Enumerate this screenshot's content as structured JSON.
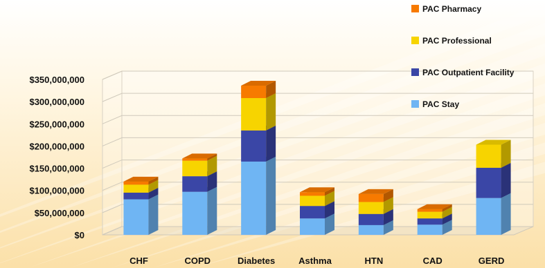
{
  "chart_data": {
    "type": "bar",
    "stacked": true,
    "three_d": true,
    "categories": [
      "CHF",
      "COPD",
      "Diabetes",
      "Asthma",
      "HTN",
      "CAD",
      "GERD"
    ],
    "series": [
      {
        "name": "PAC Stay",
        "color": "#6fb5f3",
        "values": [
          80000000,
          97000000,
          165000000,
          37000000,
          22000000,
          23000000,
          83000000
        ]
      },
      {
        "name": "PAC Outpatient Facility",
        "color": "#3a46a6",
        "values": [
          15000000,
          35000000,
          70000000,
          28000000,
          25000000,
          14000000,
          68000000
        ]
      },
      {
        "name": "PAC Professional",
        "color": "#f7d400",
        "values": [
          18000000,
          35000000,
          73000000,
          23000000,
          27000000,
          15000000,
          52000000
        ]
      },
      {
        "name": "PAC Pharmacy",
        "color": "#f77a00",
        "values": [
          7000000,
          5000000,
          28000000,
          8000000,
          18000000,
          6000000,
          0
        ]
      }
    ],
    "yticks": [
      "$0",
      "$50,000,000",
      "$100,000,000",
      "$150,000,000",
      "$200,000,000",
      "$250,000,000",
      "$300,000,000",
      "$350,000,000"
    ],
    "ylim": [
      0,
      350000000
    ],
    "grid": true,
    "legend_position": "top-right",
    "legend_order": [
      "PAC Pharmacy",
      "PAC Professional",
      "PAC Outpatient Facility",
      "PAC Stay"
    ]
  }
}
